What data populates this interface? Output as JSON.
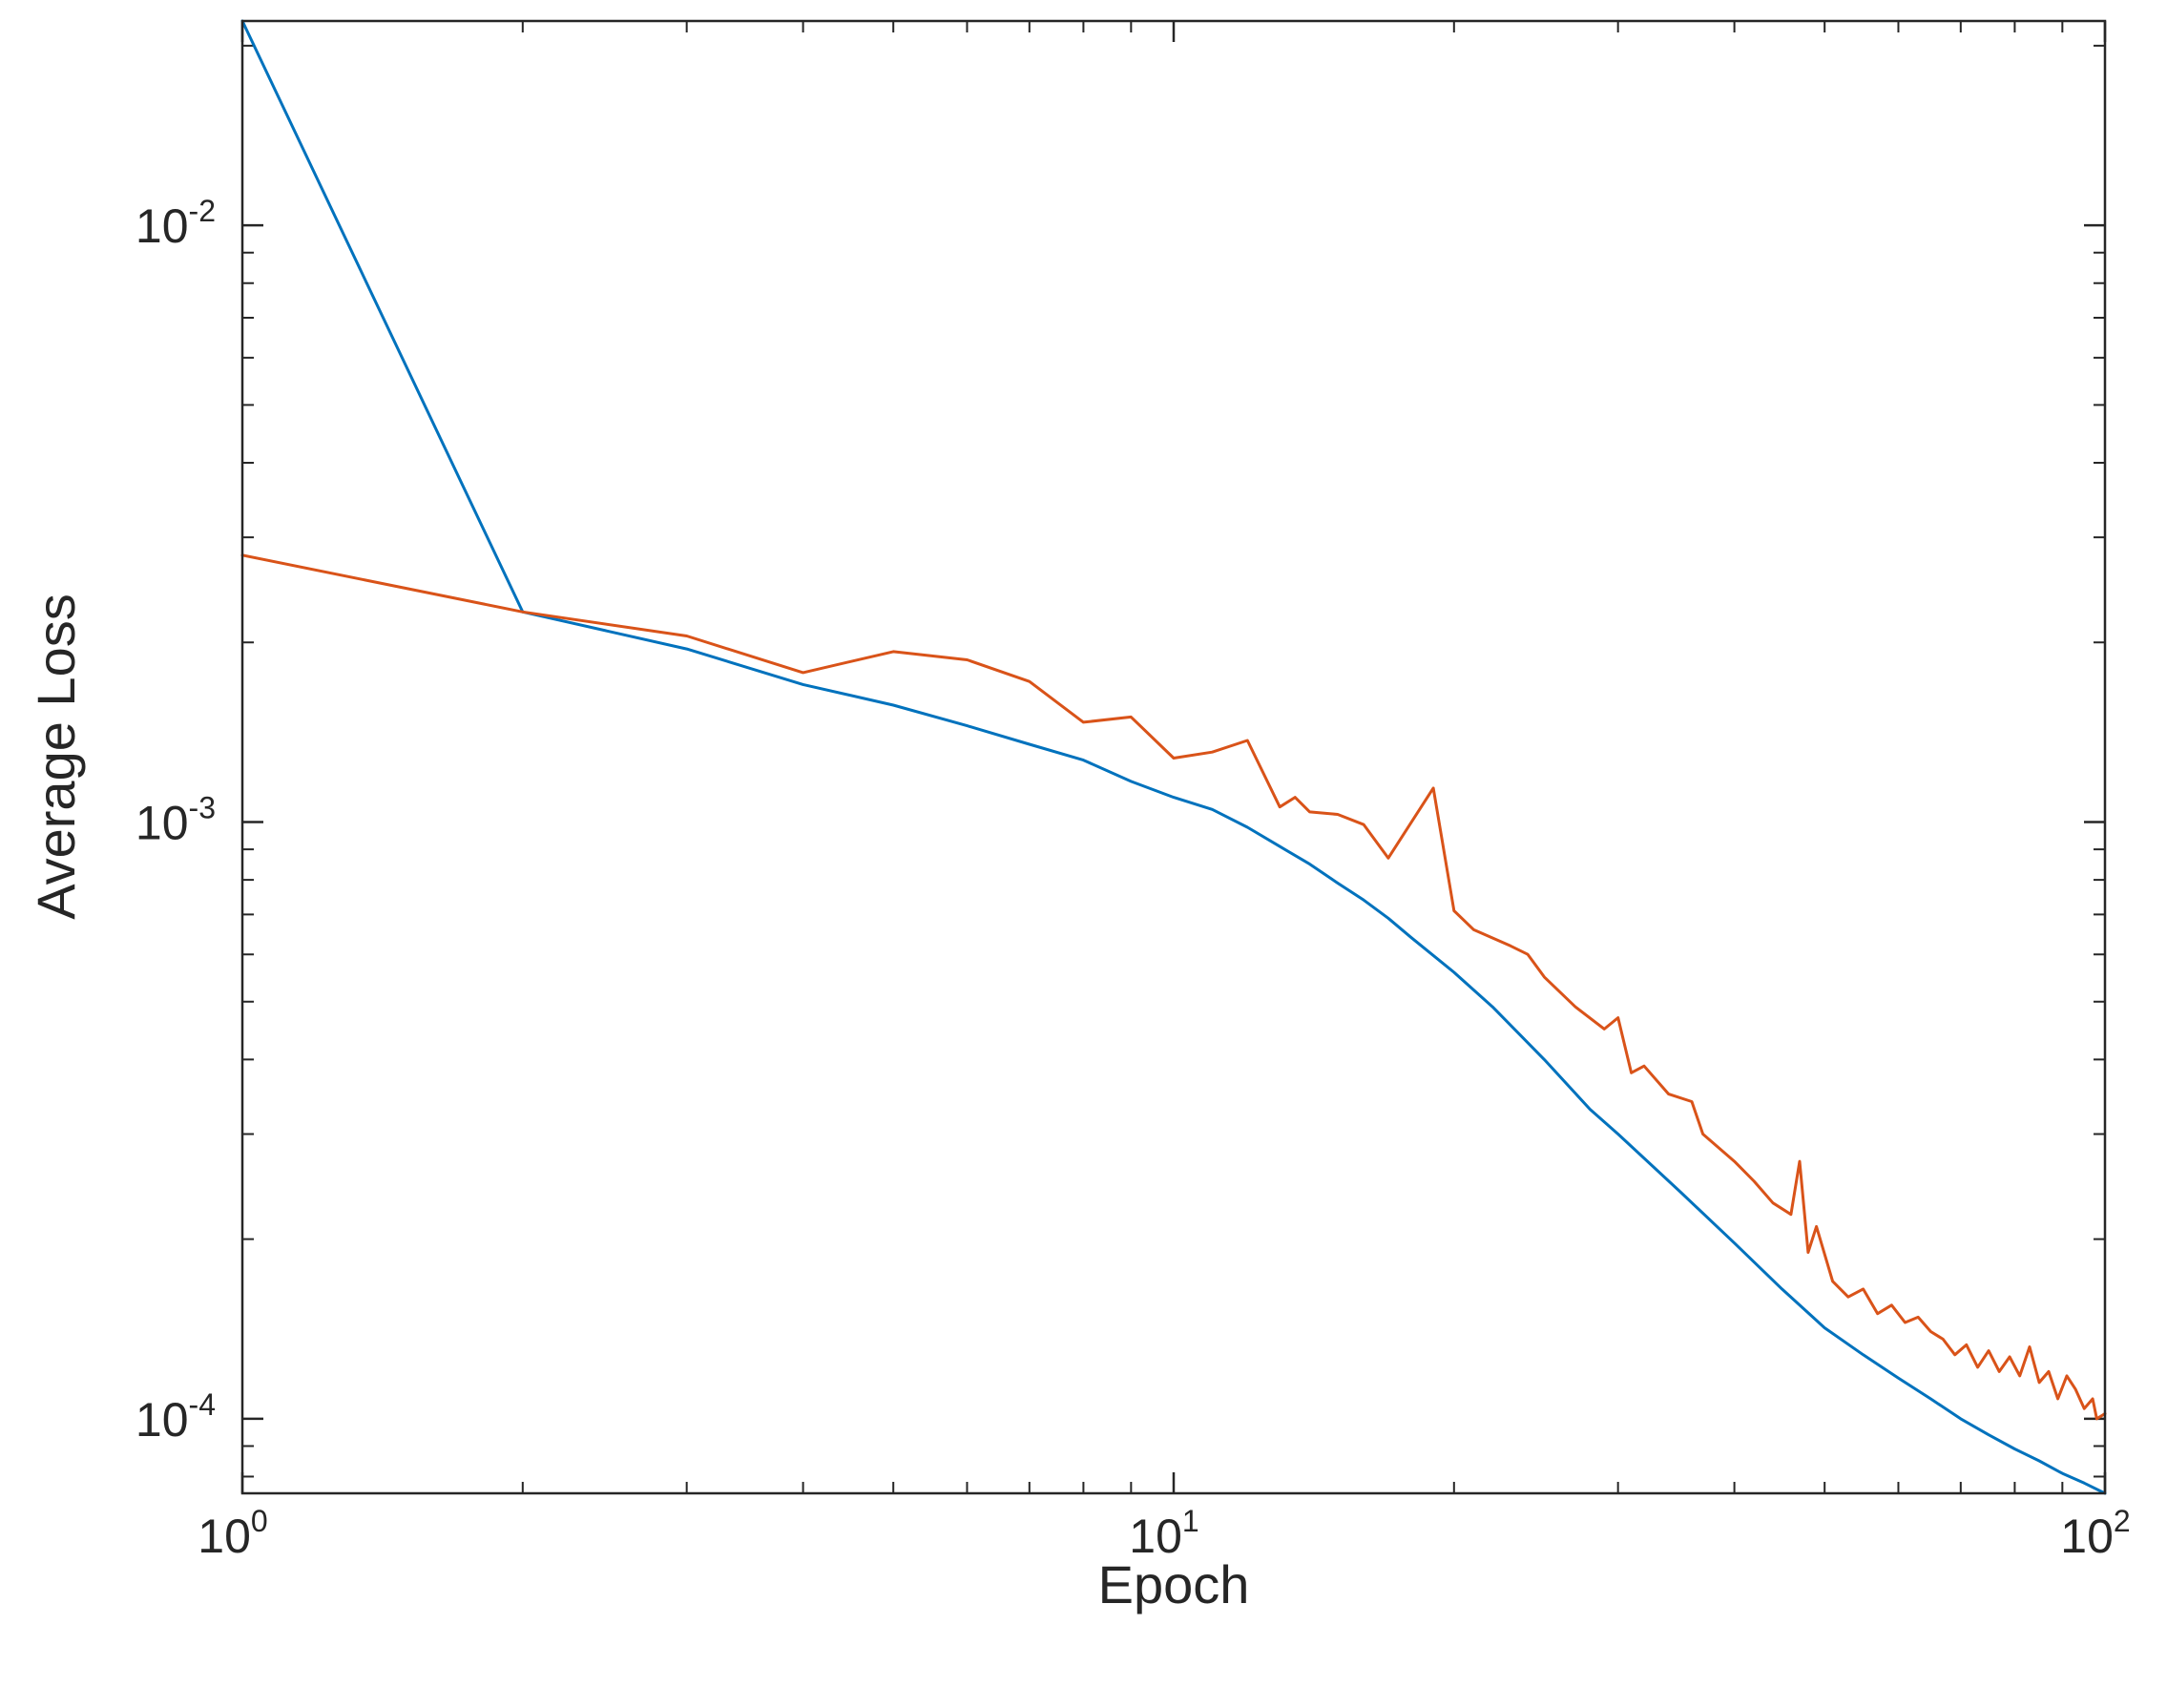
{
  "chart_data": {
    "type": "line",
    "title": "",
    "xlabel": "Epoch",
    "ylabel": "Average Loss",
    "xscale": "log",
    "yscale": "log",
    "xlim": [
      1,
      100
    ],
    "ylim": [
      7.5e-05,
      0.022
    ],
    "grid": false,
    "legend": "none",
    "x_ticks": [
      {
        "value": 1,
        "base": "10",
        "exp": "0"
      },
      {
        "value": 10,
        "base": "10",
        "exp": "1"
      },
      {
        "value": 100,
        "base": "10",
        "exp": "2"
      }
    ],
    "y_ticks": [
      {
        "value": 0.0001,
        "base": "10",
        "exp": "-4"
      },
      {
        "value": 0.001,
        "base": "10",
        "exp": "-3"
      },
      {
        "value": 0.01,
        "base": "10",
        "exp": "-2"
      }
    ],
    "series": [
      {
        "color": "#0072BD",
        "points": [
          [
            1,
            0.022
          ],
          [
            2,
            0.00225
          ],
          [
            3,
            0.00195
          ],
          [
            4,
            0.0017
          ],
          [
            5,
            0.00157
          ],
          [
            6,
            0.00145
          ],
          [
            7,
            0.00135
          ],
          [
            8,
            0.00127
          ],
          [
            9,
            0.00117
          ],
          [
            10,
            0.0011
          ],
          [
            11,
            0.00105
          ],
          [
            12,
            0.00098
          ],
          [
            13,
            0.00091
          ],
          [
            14,
            0.00085
          ],
          [
            15,
            0.00079
          ],
          [
            16,
            0.00074
          ],
          [
            17,
            0.00069
          ],
          [
            18,
            0.00064
          ],
          [
            20,
            0.00056
          ],
          [
            22,
            0.00049
          ],
          [
            25,
            0.0004
          ],
          [
            28,
            0.00033
          ],
          [
            30,
            0.0003
          ],
          [
            35,
            0.00024
          ],
          [
            40,
            0.000197
          ],
          [
            45,
            0.000165
          ],
          [
            50,
            0.000142
          ],
          [
            55,
            0.000128
          ],
          [
            60,
            0.000117
          ],
          [
            65,
            0.000108
          ],
          [
            70,
            0.0001
          ],
          [
            75,
            9.4e-05
          ],
          [
            80,
            8.9e-05
          ],
          [
            85,
            8.5e-05
          ],
          [
            90,
            8.1e-05
          ],
          [
            95,
            7.8e-05
          ],
          [
            100,
            7.5e-05
          ]
        ]
      },
      {
        "color": "#D95319",
        "points": [
          [
            1,
            0.0028
          ],
          [
            2,
            0.00225
          ],
          [
            3,
            0.00205
          ],
          [
            4,
            0.00178
          ],
          [
            5,
            0.00193
          ],
          [
            6,
            0.00187
          ],
          [
            7,
            0.00172
          ],
          [
            8,
            0.00147
          ],
          [
            9,
            0.0015
          ],
          [
            10,
            0.00128
          ],
          [
            11,
            0.00131
          ],
          [
            12,
            0.00137
          ],
          [
            13,
            0.00106
          ],
          [
            13.5,
            0.0011
          ],
          [
            14,
            0.00104
          ],
          [
            15,
            0.00103
          ],
          [
            16,
            0.00099
          ],
          [
            17,
            0.00087
          ],
          [
            19,
            0.00114
          ],
          [
            20,
            0.00071
          ],
          [
            21,
            0.00066
          ],
          [
            23,
            0.00062
          ],
          [
            24,
            0.0006
          ],
          [
            25,
            0.00055
          ],
          [
            27,
            0.00049
          ],
          [
            29,
            0.00045
          ],
          [
            30,
            0.00047
          ],
          [
            31,
            0.00038
          ],
          [
            32,
            0.00039
          ],
          [
            34,
            0.00035
          ],
          [
            36,
            0.00034
          ],
          [
            37,
            0.0003
          ],
          [
            40,
            0.00027
          ],
          [
            42,
            0.00025
          ],
          [
            44,
            0.00023
          ],
          [
            46,
            0.00022
          ],
          [
            47,
            0.00027
          ],
          [
            48,
            0.00019
          ],
          [
            49,
            0.00021
          ],
          [
            51,
            0.00017
          ],
          [
            53,
            0.00016
          ],
          [
            55,
            0.000165
          ],
          [
            57,
            0.00015
          ],
          [
            59,
            0.000155
          ],
          [
            61,
            0.000145
          ],
          [
            63,
            0.000148
          ],
          [
            65,
            0.00014
          ],
          [
            67,
            0.000136
          ],
          [
            69,
            0.000128
          ],
          [
            71,
            0.000133
          ],
          [
            73,
            0.000122
          ],
          [
            75,
            0.00013
          ],
          [
            77,
            0.00012
          ],
          [
            79,
            0.000127
          ],
          [
            81,
            0.000118
          ],
          [
            83,
            0.000132
          ],
          [
            85,
            0.000115
          ],
          [
            87,
            0.00012
          ],
          [
            89,
            0.000108
          ],
          [
            91,
            0.000118
          ],
          [
            93,
            0.000112
          ],
          [
            95,
            0.000104
          ],
          [
            97,
            0.000108
          ],
          [
            98,
            0.0001
          ],
          [
            100,
            0.000102
          ]
        ]
      }
    ]
  }
}
